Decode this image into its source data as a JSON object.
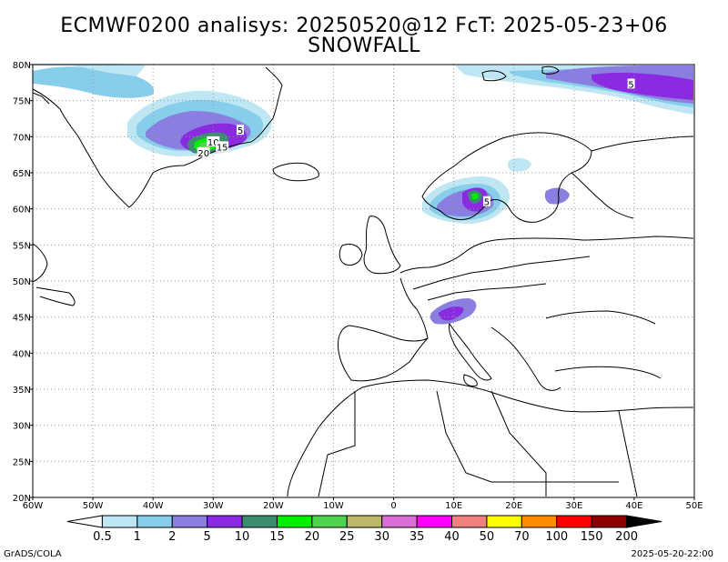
{
  "title": {
    "line1": "ECMWF0200 analisys: 20250520@12 FcT: 2025-05-23+06",
    "line2": "SNOWFALL"
  },
  "axes": {
    "lon_range": [
      -60,
      50
    ],
    "lat_range": [
      20,
      80
    ],
    "x_ticks": [
      {
        "value": -60,
        "label": "60W"
      },
      {
        "value": -50,
        "label": "50W"
      },
      {
        "value": -40,
        "label": "40W"
      },
      {
        "value": -30,
        "label": "30W"
      },
      {
        "value": -20,
        "label": "20W"
      },
      {
        "value": -10,
        "label": "10W"
      },
      {
        "value": 0,
        "label": "0"
      },
      {
        "value": 10,
        "label": "10E"
      },
      {
        "value": 20,
        "label": "20E"
      },
      {
        "value": 30,
        "label": "30E"
      },
      {
        "value": 40,
        "label": "40E"
      },
      {
        "value": 50,
        "label": "50E"
      }
    ],
    "y_ticks": [
      {
        "value": 20,
        "label": "20N"
      },
      {
        "value": 25,
        "label": "25N"
      },
      {
        "value": 30,
        "label": "30N"
      },
      {
        "value": 35,
        "label": "35N"
      },
      {
        "value": 40,
        "label": "40N"
      },
      {
        "value": 45,
        "label": "45N"
      },
      {
        "value": 50,
        "label": "50N"
      },
      {
        "value": 55,
        "label": "55N"
      },
      {
        "value": 60,
        "label": "60N"
      },
      {
        "value": 65,
        "label": "65N"
      },
      {
        "value": 70,
        "label": "70N"
      },
      {
        "value": 75,
        "label": "75N"
      },
      {
        "value": 80,
        "label": "80N"
      }
    ],
    "grid": "dotted"
  },
  "colorbar": {
    "levels": [
      "0.5",
      "1",
      "2",
      "5",
      "10",
      "15",
      "20",
      "25",
      "30",
      "35",
      "40",
      "50",
      "70",
      "100",
      "150",
      "200"
    ],
    "colors": [
      "#ffffff",
      "#bfe6f3",
      "#87ceeb",
      "#8a7fe0",
      "#8a2be2",
      "#3c8c6e",
      "#00ee00",
      "#4ed34e",
      "#bdb76b",
      "#da70d6",
      "#ff00ff",
      "#f08080",
      "#ffff00",
      "#ff8c00",
      "#ff0000",
      "#8b0000",
      "#000000"
    ]
  },
  "contour_labels": [
    {
      "text": "5",
      "lon": 39.5,
      "lat": 77.3
    },
    {
      "text": "5",
      "lon": -25.5,
      "lat": 70.9
    },
    {
      "text": "10",
      "lon": -30,
      "lat": 69.3
    },
    {
      "text": "15",
      "lon": -28.5,
      "lat": 68.6
    },
    {
      "text": "20",
      "lon": -31.6,
      "lat": 67.8
    },
    {
      "text": "5",
      "lon": 15.5,
      "lat": 61.0
    }
  ],
  "footer": {
    "left": "GrADS/COLA",
    "right": "2025-05-20-22:00"
  }
}
